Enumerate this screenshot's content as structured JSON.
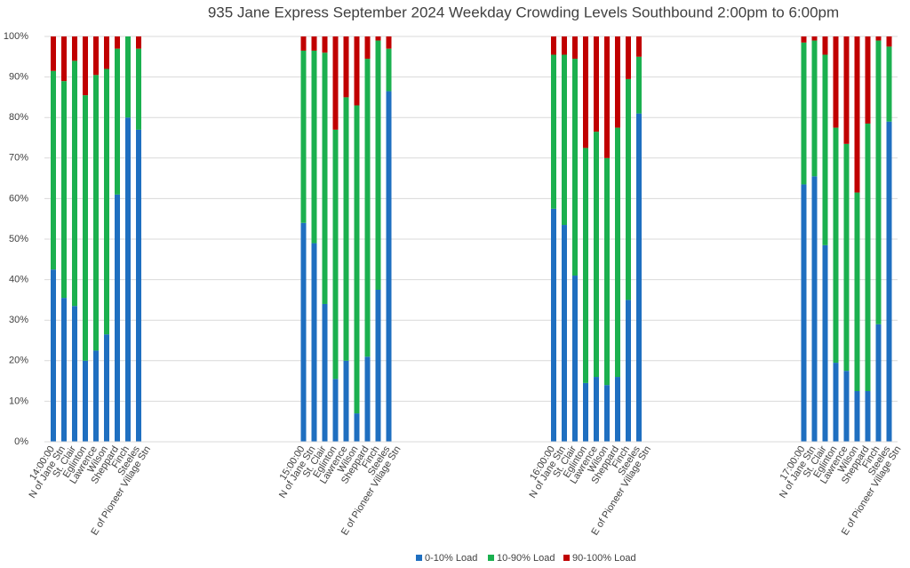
{
  "chart_data": {
    "type": "bar",
    "stacked": true,
    "title": "935 Jane Express September 2024  Weekday Crowding Levels Southbound 2:00pm to 6:00pm",
    "groups": [
      "14:00:00",
      "15:00:00",
      "16:00:00",
      "17:00:00"
    ],
    "categories": [
      "N of Jane Stn",
      "St. Clair",
      "Eglinton",
      "Lawrence",
      "Wilson",
      "Sheppard",
      "Finch",
      "Steeles",
      "E of Pioneer Village Stn"
    ],
    "series": [
      {
        "name": "0-10% Load",
        "color": "#1f6fc0",
        "values": [
          [
            42.5,
            35.5,
            33.5,
            20,
            22.5,
            26.5,
            61,
            80,
            77
          ],
          [
            54,
            49,
            34,
            15.5,
            20,
            7,
            21,
            37.5,
            86.5
          ],
          [
            57.5,
            53.5,
            41,
            14.5,
            16,
            14,
            16,
            35,
            81
          ],
          [
            63.5,
            65.5,
            48.5,
            19.5,
            17.5,
            12.5,
            12.5,
            29,
            79
          ]
        ]
      },
      {
        "name": "10-90% Load",
        "color": "#1bb04f",
        "values": [
          [
            49,
            53.5,
            60.5,
            65.5,
            68,
            65.5,
            36,
            20,
            20
          ],
          [
            42.5,
            47.5,
            62,
            61.5,
            65,
            76,
            73.5,
            61.5,
            10.5
          ],
          [
            38,
            42,
            53.5,
            58,
            60.5,
            56,
            61.5,
            54.5,
            14
          ],
          [
            35,
            33.5,
            47,
            58,
            56,
            49,
            66,
            70,
            18.5
          ]
        ]
      },
      {
        "name": "90-100% Load",
        "color": "#c00000",
        "values": [
          [
            8.5,
            11,
            6,
            14.5,
            9.5,
            8,
            3,
            0,
            3
          ],
          [
            3.5,
            3.5,
            4,
            23,
            15,
            17,
            5.5,
            1,
            3
          ],
          [
            4.5,
            4.5,
            5.5,
            27.5,
            23.5,
            30,
            22.5,
            10.5,
            5
          ],
          [
            1.5,
            1,
            4.5,
            22.5,
            26.5,
            38.5,
            21.5,
            1,
            2.5
          ]
        ]
      }
    ],
    "ylim": [
      0,
      100
    ],
    "yticks": [
      {
        "value": 0,
        "label": "0%"
      },
      {
        "value": 10,
        "label": "10%"
      },
      {
        "value": 20,
        "label": "20%"
      },
      {
        "value": 30,
        "label": "30%"
      },
      {
        "value": 40,
        "label": "40%"
      },
      {
        "value": 50,
        "label": "50%"
      },
      {
        "value": 60,
        "label": "60%"
      },
      {
        "value": 70,
        "label": "70%"
      },
      {
        "value": 80,
        "label": "80%"
      },
      {
        "value": 90,
        "label": "90%"
      },
      {
        "value": 100,
        "label": "100%"
      }
    ],
    "grid": true,
    "legend": "bottom"
  }
}
